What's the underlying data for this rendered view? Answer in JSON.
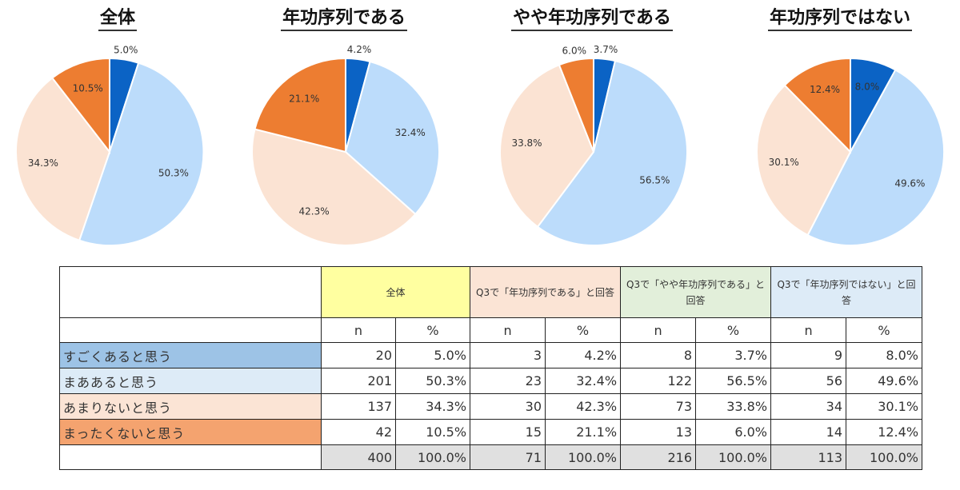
{
  "colors": {
    "slices": [
      "#0b63c5",
      "#bcdcfb",
      "#fbe3d3",
      "#ed7d31"
    ],
    "header_bg": [
      "#ffffa0",
      "#fbe4d5",
      "#e2efda",
      "#ddebf7"
    ],
    "row_label_bg": [
      "#9dc3e6",
      "#ddebf7",
      "#fbe4d5",
      "#f4a36f"
    ]
  },
  "chart_data": [
    {
      "type": "pie",
      "title": "全体",
      "labels": [
        "すごくあると思う",
        "まああると思う",
        "あまりないと思う",
        "まったくないと思う"
      ],
      "values": [
        5.0,
        50.3,
        34.3,
        10.5
      ],
      "value_labels": [
        "5.0%",
        "50.3%",
        "34.3%",
        "10.5%"
      ]
    },
    {
      "type": "pie",
      "title": "年功序列である",
      "labels": [
        "すごくあると思う",
        "まああると思う",
        "あまりないと思う",
        "まったくないと思う"
      ],
      "values": [
        4.2,
        32.4,
        42.3,
        21.1
      ],
      "value_labels": [
        "4.2%",
        "32.4%",
        "42.3%",
        "21.1%"
      ]
    },
    {
      "type": "pie",
      "title": "やや年功序列である",
      "labels": [
        "すごくあると思う",
        "まああると思う",
        "あまりないと思う",
        "まったくないと思う"
      ],
      "values": [
        3.7,
        56.5,
        33.8,
        6.0
      ],
      "value_labels": [
        "3.7%",
        "56.5%",
        "33.8%",
        "6.0%"
      ]
    },
    {
      "type": "pie",
      "title": "年功序列ではない",
      "labels": [
        "すごくあると思う",
        "まああると思う",
        "あまりないと思う",
        "まったくないと思う"
      ],
      "values": [
        8.0,
        49.6,
        30.1,
        12.4
      ],
      "value_labels": [
        "8.0%",
        "49.6%",
        "30.1%",
        "12.4%"
      ]
    }
  ],
  "table": {
    "group_headers": [
      "全体",
      "Q3で「年功序列である」と回答",
      "Q3で「やや年功序列である」と回答",
      "Q3で「年功序列ではない」と回答"
    ],
    "sub_headers": [
      "n",
      "%"
    ],
    "rows": [
      {
        "label": "すごくあると思う",
        "cells": [
          "20",
          "5.0%",
          "3",
          "4.2%",
          "8",
          "3.7%",
          "9",
          "8.0%"
        ]
      },
      {
        "label": "まああると思う",
        "cells": [
          "201",
          "50.3%",
          "23",
          "32.4%",
          "122",
          "56.5%",
          "56",
          "49.6%"
        ]
      },
      {
        "label": "あまりないと思う",
        "cells": [
          "137",
          "34.3%",
          "30",
          "42.3%",
          "73",
          "33.8%",
          "34",
          "30.1%"
        ]
      },
      {
        "label": "まったくないと思う",
        "cells": [
          "42",
          "10.5%",
          "15",
          "21.1%",
          "13",
          "6.0%",
          "14",
          "12.4%"
        ]
      }
    ],
    "total": [
      "400",
      "100.0%",
      "71",
      "100.0%",
      "216",
      "100.0%",
      "113",
      "100.0%"
    ]
  }
}
